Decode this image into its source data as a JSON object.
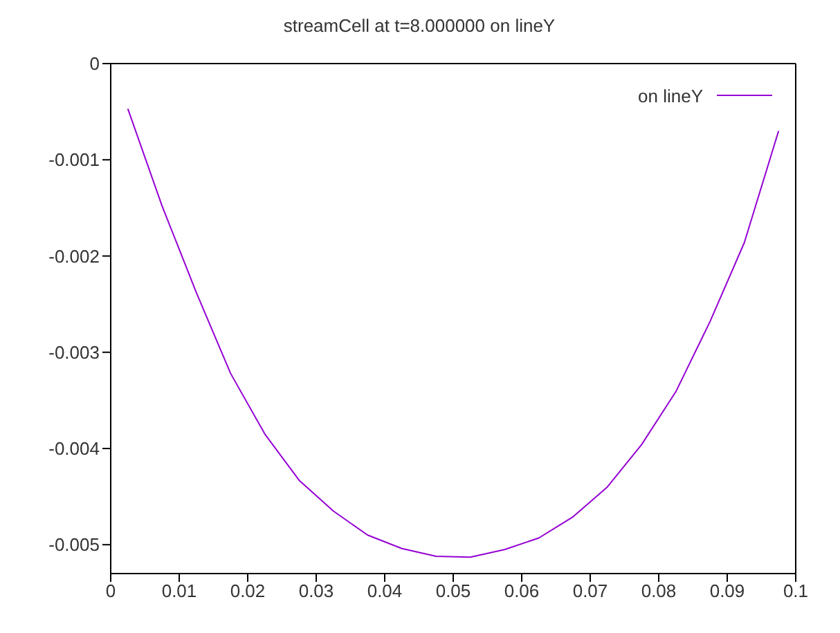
{
  "chart_data": {
    "type": "line",
    "title": "streamCell at t=8.000000 on lineY",
    "x": [
      0.0025,
      0.0075,
      0.0125,
      0.0175,
      0.0225,
      0.0275,
      0.0325,
      0.0375,
      0.0425,
      0.0475,
      0.0525,
      0.0575,
      0.0625,
      0.0675,
      0.0725,
      0.0775,
      0.0825,
      0.0875,
      0.0925,
      0.0975
    ],
    "series": [
      {
        "name": "on lineY",
        "color": "#9400d3",
        "values": [
          -0.00047,
          -0.00148,
          -0.00238,
          -0.00322,
          -0.00385,
          -0.00433,
          -0.00465,
          -0.0049,
          -0.00504,
          -0.00512,
          -0.00513,
          -0.00505,
          -0.00493,
          -0.00471,
          -0.0044,
          -0.00396,
          -0.00341,
          -0.00268,
          -0.00186,
          -0.0007
        ]
      }
    ],
    "xlim": [
      0,
      0.1
    ],
    "xticks": [
      0,
      0.01,
      0.02,
      0.03,
      0.04,
      0.05,
      0.06,
      0.07,
      0.08,
      0.09,
      0.1
    ],
    "ylim": [
      -0.0053,
      0
    ],
    "yticks": [
      -0.005,
      -0.004,
      -0.003,
      -0.002,
      -0.001,
      0
    ],
    "grid": false,
    "legend": "top right",
    "marker": "none",
    "line_style": "solid"
  }
}
